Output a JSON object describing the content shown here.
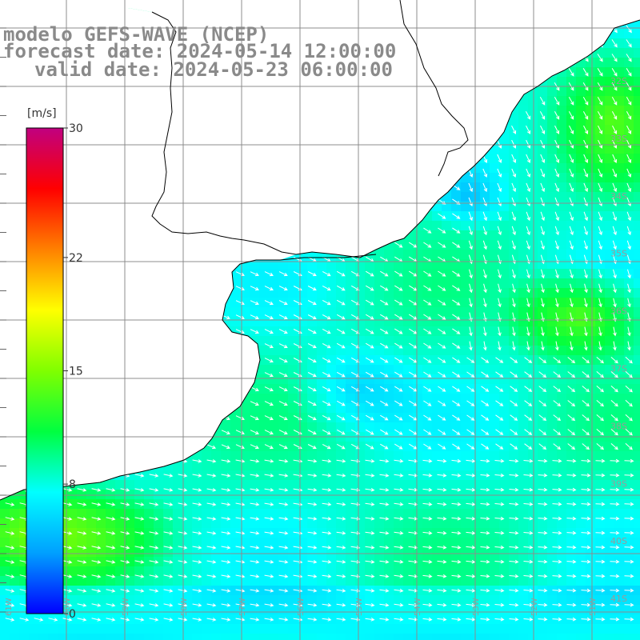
{
  "title": {
    "line1": "modelo GEFS-WAVE (NCEP)",
    "line2": "forecast date: 2024-05-14 12:00:00",
    "line3": "valid date: 2024-05-23 06:00:00"
  },
  "colorbar": {
    "unit": "[m/s]",
    "ticks": [
      "30",
      "22",
      "15",
      "8",
      "0"
    ],
    "tick_values": [
      30,
      22,
      15,
      8,
      0
    ],
    "range": [
      0,
      30
    ],
    "colors": [
      "#0000ff",
      "#00a0ff",
      "#00ffff",
      "#00ff40",
      "#80ff00",
      "#ffff00",
      "#ff8000",
      "#ff0000",
      "#c00080"
    ]
  },
  "map": {
    "lat_labels": [
      "32S",
      "33S",
      "34S",
      "35S",
      "36S",
      "37S",
      "38S",
      "39S",
      "40S",
      "41S"
    ],
    "lon_labels": [
      "61W",
      "60W",
      "59W",
      "58W",
      "57W",
      "56W",
      "55W",
      "54W",
      "53W",
      "52W",
      "51W"
    ],
    "land_color": "#ffffff",
    "coast_color": "#000000",
    "grid_color": "#8c8c8c"
  }
}
